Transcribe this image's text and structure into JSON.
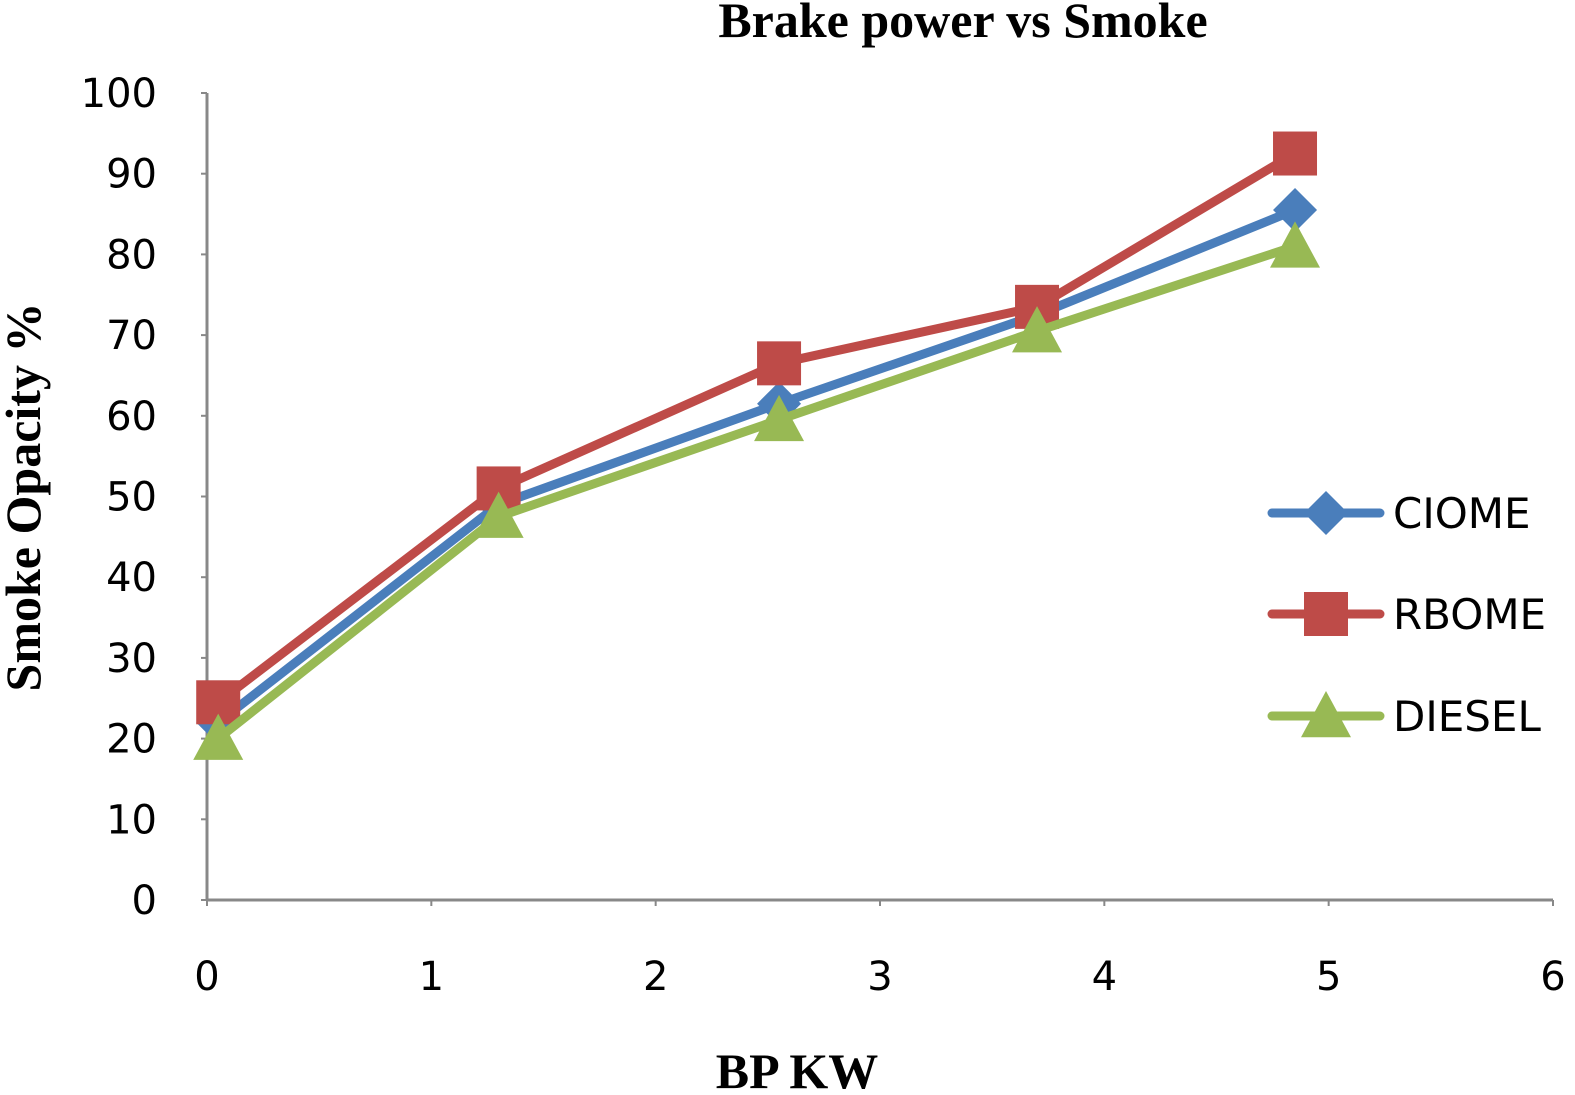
{
  "chart_data": {
    "type": "line",
    "title": "Brake power vs Smoke",
    "xlabel": "BP  KW",
    "ylabel": "Smoke Opacity %",
    "xlim": [
      0,
      6
    ],
    "ylim": [
      0,
      100
    ],
    "xticks": [
      0,
      1,
      2,
      3,
      4,
      5,
      6
    ],
    "yticks": [
      0,
      10,
      20,
      30,
      40,
      50,
      60,
      70,
      80,
      90,
      100
    ],
    "x": [
      0.05,
      1.3,
      2.55,
      3.7,
      4.85
    ],
    "series": [
      {
        "name": "CIOME",
        "color": "#4a7ebb",
        "marker": "diamond",
        "values": [
          22,
          49,
          61.5,
          72.5,
          85.5
        ]
      },
      {
        "name": "RBOME",
        "color": "#be4b48",
        "marker": "square",
        "values": [
          24.5,
          51,
          66.5,
          73.5,
          92.5
        ]
      },
      {
        "name": "DIESEL",
        "color": "#98b954",
        "marker": "triangle",
        "values": [
          20,
          47.5,
          59.5,
          70.5,
          81
        ]
      }
    ],
    "grid": false,
    "legend": "right"
  }
}
